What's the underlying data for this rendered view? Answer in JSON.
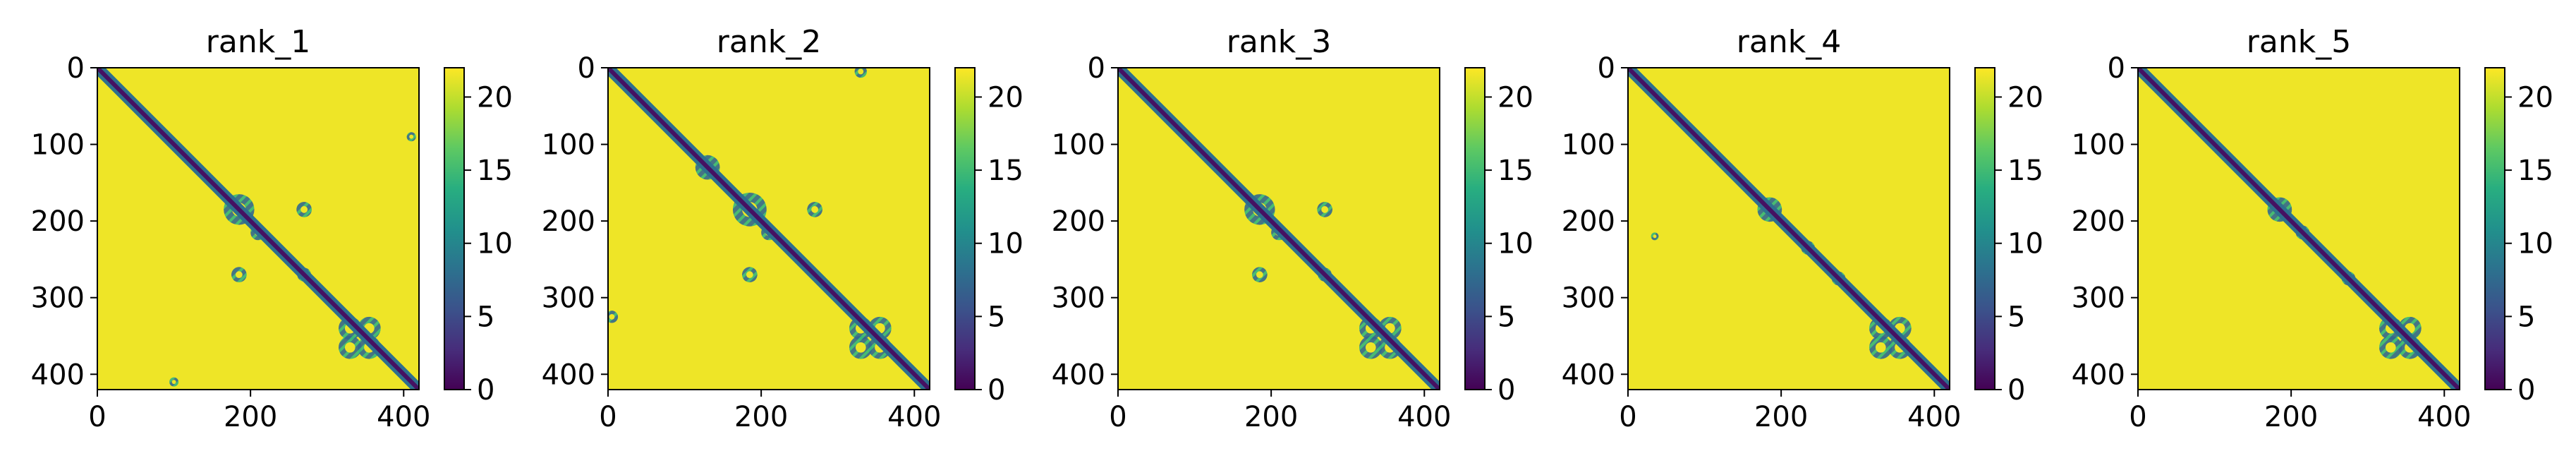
{
  "chart_data": {
    "type": "heatmap",
    "colormap": "viridis",
    "background": "#ffffff",
    "matrix_size": 420,
    "diagonal_value": 1,
    "background_value": 21.5,
    "panels": [
      {
        "title": "rank_1",
        "xticks": [
          0,
          200,
          400
        ],
        "yticks": [
          0,
          100,
          200,
          300,
          400
        ],
        "colorbar": {
          "vmin": 0,
          "vmax": 22,
          "ticks": [
            0,
            5,
            10,
            15,
            20
          ]
        },
        "contact_blocks": [
          {
            "x": 185,
            "y": 185,
            "r": 20
          },
          {
            "x": 270,
            "y": 185,
            "r": 10
          },
          {
            "x": 185,
            "y": 270,
            "r": 10
          },
          {
            "x": 330,
            "y": 340,
            "r": 15
          },
          {
            "x": 355,
            "y": 340,
            "r": 15
          },
          {
            "x": 330,
            "y": 365,
            "r": 15
          },
          {
            "x": 355,
            "y": 365,
            "r": 15
          },
          {
            "x": 100,
            "y": 410,
            "r": 6
          },
          {
            "x": 410,
            "y": 90,
            "r": 6
          },
          {
            "x": 210,
            "y": 215,
            "r": 10
          },
          {
            "x": 270,
            "y": 270,
            "r": 9
          }
        ]
      },
      {
        "title": "rank_2",
        "xticks": [
          0,
          200,
          400
        ],
        "yticks": [
          0,
          100,
          200,
          300,
          400
        ],
        "colorbar": {
          "vmin": 0,
          "vmax": 22,
          "ticks": [
            0,
            5,
            10,
            15,
            20
          ]
        },
        "contact_blocks": [
          {
            "x": 185,
            "y": 185,
            "r": 22
          },
          {
            "x": 130,
            "y": 130,
            "r": 16
          },
          {
            "x": 270,
            "y": 185,
            "r": 10
          },
          {
            "x": 185,
            "y": 270,
            "r": 10
          },
          {
            "x": 330,
            "y": 340,
            "r": 15
          },
          {
            "x": 355,
            "y": 340,
            "r": 15
          },
          {
            "x": 330,
            "y": 365,
            "r": 15
          },
          {
            "x": 355,
            "y": 365,
            "r": 15
          },
          {
            "x": 5,
            "y": 325,
            "r": 8
          },
          {
            "x": 330,
            "y": 5,
            "r": 8
          },
          {
            "x": 210,
            "y": 215,
            "r": 10
          }
        ]
      },
      {
        "title": "rank_3",
        "xticks": [
          0,
          200,
          400
        ],
        "yticks": [
          0,
          100,
          200,
          300,
          400
        ],
        "colorbar": {
          "vmin": 0,
          "vmax": 22,
          "ticks": [
            0,
            5,
            10,
            15,
            20
          ]
        },
        "contact_blocks": [
          {
            "x": 185,
            "y": 185,
            "r": 20
          },
          {
            "x": 270,
            "y": 185,
            "r": 10
          },
          {
            "x": 185,
            "y": 270,
            "r": 10
          },
          {
            "x": 330,
            "y": 340,
            "r": 15
          },
          {
            "x": 355,
            "y": 340,
            "r": 15
          },
          {
            "x": 330,
            "y": 365,
            "r": 15
          },
          {
            "x": 355,
            "y": 365,
            "r": 15
          },
          {
            "x": 210,
            "y": 215,
            "r": 10
          },
          {
            "x": 270,
            "y": 270,
            "r": 9
          }
        ]
      },
      {
        "title": "rank_4",
        "xticks": [
          0,
          200,
          400
        ],
        "yticks": [
          0,
          100,
          200,
          300,
          400
        ],
        "colorbar": {
          "vmin": 0,
          "vmax": 22,
          "ticks": [
            0,
            5,
            10,
            15,
            20
          ]
        },
        "contact_blocks": [
          {
            "x": 185,
            "y": 185,
            "r": 16
          },
          {
            "x": 330,
            "y": 340,
            "r": 15
          },
          {
            "x": 355,
            "y": 340,
            "r": 15
          },
          {
            "x": 330,
            "y": 365,
            "r": 15
          },
          {
            "x": 355,
            "y": 365,
            "r": 15
          },
          {
            "x": 235,
            "y": 235,
            "r": 9
          },
          {
            "x": 275,
            "y": 275,
            "r": 9
          },
          {
            "x": 35,
            "y": 220,
            "r": 5
          }
        ]
      },
      {
        "title": "rank_5",
        "xticks": [
          0,
          200,
          400
        ],
        "yticks": [
          0,
          100,
          200,
          300,
          400
        ],
        "colorbar": {
          "vmin": 0,
          "vmax": 22,
          "ticks": [
            0,
            5,
            10,
            15,
            20
          ]
        },
        "contact_blocks": [
          {
            "x": 185,
            "y": 185,
            "r": 16
          },
          {
            "x": 330,
            "y": 340,
            "r": 15
          },
          {
            "x": 355,
            "y": 340,
            "r": 15
          },
          {
            "x": 330,
            "y": 365,
            "r": 15
          },
          {
            "x": 355,
            "y": 365,
            "r": 15
          },
          {
            "x": 215,
            "y": 215,
            "r": 9
          },
          {
            "x": 275,
            "y": 275,
            "r": 9
          }
        ]
      }
    ]
  }
}
